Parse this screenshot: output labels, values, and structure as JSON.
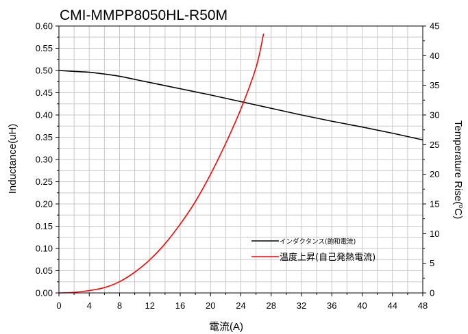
{
  "chart_data": {
    "type": "line",
    "title": "CMI-MMPP8050HL-R50M",
    "xlabel": "電流(A)",
    "ylabel": "Inductance(uH)",
    "y2label_main": "Temperature Rise(",
    "y2label_sup": "o",
    "y2label_end": "C)",
    "xlim": [
      0,
      48
    ],
    "ylim": [
      0,
      0.6
    ],
    "y2lim": [
      0,
      45
    ],
    "xticks": [
      0,
      4,
      8,
      12,
      16,
      20,
      24,
      28,
      32,
      36,
      40,
      44,
      48
    ],
    "yticks": [
      "0.00",
      "0.05",
      "0.10",
      "0.15",
      "0.20",
      "0.25",
      "0.30",
      "0.35",
      "0.40",
      "0.45",
      "0.50",
      "0.55",
      "0.60"
    ],
    "y2ticks": [
      0,
      5,
      10,
      15,
      20,
      25,
      30,
      35,
      40,
      45
    ],
    "grid": true,
    "legend_position": "lower-right",
    "series": [
      {
        "name": "インダクタンス(飽和電流)",
        "axis": "left",
        "color": "#000000",
        "x": [
          0,
          2,
          4,
          6,
          8,
          10,
          12,
          16,
          20,
          24,
          28,
          32,
          36,
          40,
          44,
          48
        ],
        "y": [
          0.5,
          0.498,
          0.496,
          0.492,
          0.487,
          0.48,
          0.473,
          0.459,
          0.445,
          0.43,
          0.415,
          0.4,
          0.386,
          0.373,
          0.359,
          0.344
        ]
      },
      {
        "name": "温度上昇(自己発熱電流)",
        "axis": "right",
        "color": "#ff0000",
        "x": [
          0,
          2,
          4,
          6,
          8,
          10,
          12,
          14,
          16,
          18,
          20,
          22,
          24,
          26,
          27
        ],
        "y": [
          0,
          0.1,
          0.4,
          0.9,
          1.9,
          3.5,
          5.6,
          8.3,
          11.6,
          15.4,
          20.0,
          25.2,
          31.0,
          38.0,
          43.7
        ]
      }
    ]
  }
}
